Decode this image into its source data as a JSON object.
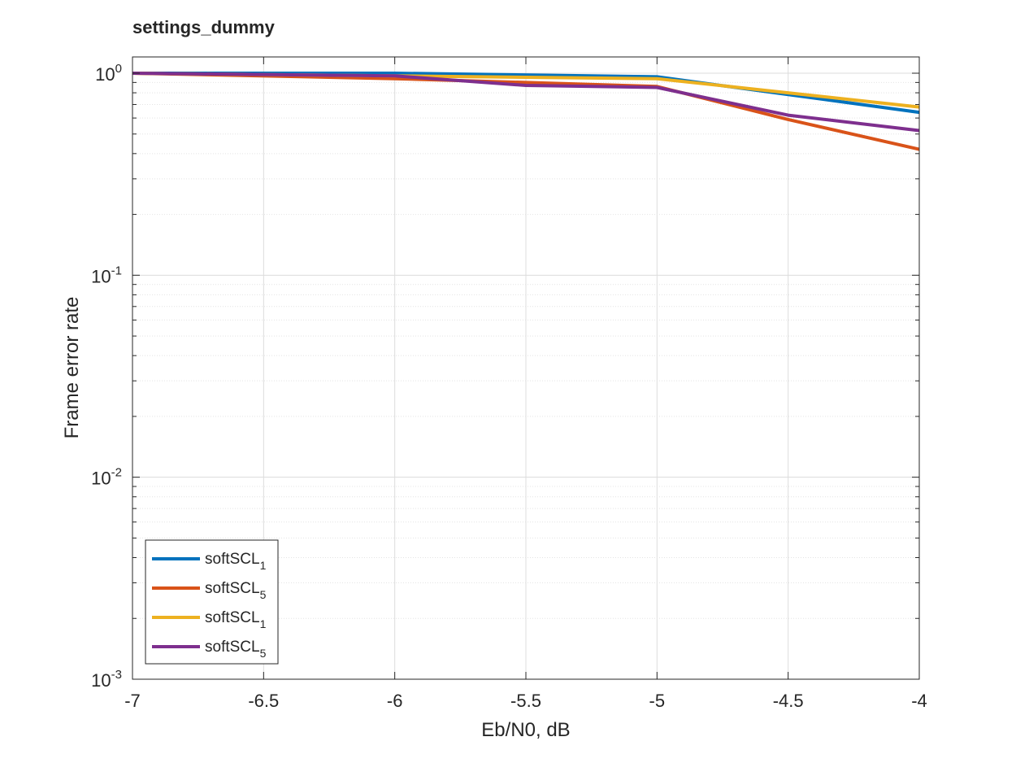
{
  "chart_data": {
    "type": "line",
    "title": "settings_dummy",
    "xlabel": "Eb/N0, dB",
    "ylabel": "Frame error rate",
    "xlim": [
      -7,
      -4
    ],
    "ylim": [
      0.001,
      1.2
    ],
    "yscale": "log",
    "grid": true,
    "minor_grid": true,
    "legend_position": "bottom-left",
    "x_ticks": [
      -7,
      -6.5,
      -6,
      -5.5,
      -5,
      -4.5,
      -4
    ],
    "x_tick_labels": [
      "-7",
      "-6.5",
      "-6",
      "-5.5",
      "-5",
      "-4.5",
      "-4"
    ],
    "y_ticks": [
      {
        "value": 1,
        "base": "10",
        "exp": "0"
      },
      {
        "value": 0.1,
        "base": "10",
        "exp": "-1"
      },
      {
        "value": 0.01,
        "base": "10",
        "exp": "-2"
      },
      {
        "value": 0.001,
        "base": "10",
        "exp": "-3"
      }
    ],
    "x": [
      -7,
      -6,
      -5,
      -4
    ],
    "series": [
      {
        "name": "softSCL",
        "subscript": "1",
        "color": "#0072BD",
        "x": [
          -7,
          -6,
          -5,
          -4
        ],
        "values": [
          1.0,
          1.0,
          0.96,
          0.64
        ]
      },
      {
        "name": "softSCL",
        "subscript": "5",
        "color": "#D95319",
        "x": [
          -7,
          -6,
          -5.5,
          -5,
          -4.5,
          -4
        ],
        "values": [
          1.0,
          0.94,
          0.9,
          0.86,
          0.59,
          0.42
        ]
      },
      {
        "name": "softSCL",
        "subscript": "1",
        "color": "#EDB120",
        "x": [
          -7,
          -6,
          -5,
          -4
        ],
        "values": [
          1.0,
          0.97,
          0.94,
          0.68
        ]
      },
      {
        "name": "softSCL",
        "subscript": "5",
        "color": "#7E2F8E",
        "x": [
          -7,
          -6,
          -5.5,
          -5,
          -4.5,
          -4
        ],
        "values": [
          1.0,
          0.97,
          0.87,
          0.85,
          0.62,
          0.52
        ]
      }
    ]
  }
}
